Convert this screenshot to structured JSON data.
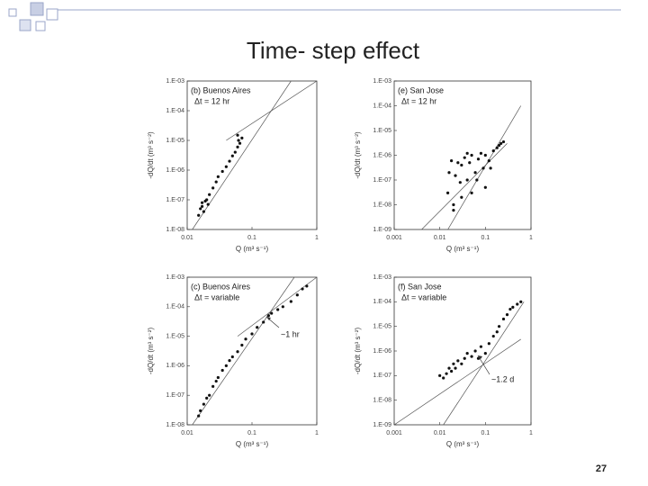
{
  "slide": {
    "title": "Time- step effect",
    "page_number": "27"
  },
  "chart_data": [
    {
      "type": "scatter",
      "panel_label": "(b) Buenos Aires",
      "panel_note": "Δt = 12 hr",
      "xlabel": "Q  (m³ s⁻¹)",
      "ylabel": "-dQ/dt  (m³ s⁻²)",
      "color": "#111",
      "log_x": true,
      "log_y": true,
      "xlim": [
        0.01,
        1
      ],
      "ylim": [
        1e-08,
        0.001
      ],
      "xticks": [
        0.01,
        0.1,
        1
      ],
      "yticks": [
        {
          "value": 1e-08,
          "label": "1.E-08"
        },
        {
          "value": 1e-07,
          "label": "1.E-07"
        },
        {
          "value": 1e-06,
          "label": "1.E-06"
        },
        {
          "value": 1e-05,
          "label": "1.E-05"
        },
        {
          "value": 0.0001,
          "label": "1.E-04"
        },
        {
          "value": 0.001,
          "label": "1.E-03"
        }
      ],
      "x": [
        0.015,
        0.016,
        0.017,
        0.018,
        0.02,
        0.021,
        0.022,
        0.025,
        0.028,
        0.03,
        0.035,
        0.04,
        0.045,
        0.05,
        0.055,
        0.06,
        0.065,
        0.07,
        0.06,
        0.062,
        0.017,
        0.019
      ],
      "values": [
        3e-08,
        5e-08,
        8e-08,
        4e-08,
        1e-07,
        7e-08,
        1.5e-07,
        2.5e-07,
        4e-07,
        6e-07,
        9e-07,
        1.3e-06,
        2e-06,
        3e-06,
        4e-06,
        6e-06,
        8e-06,
        1.2e-05,
        1.5e-05,
        1e-05,
        6e-08,
        9e-08
      ],
      "fit_lines": [
        {
          "x": [
            0.012,
            0.4
          ],
          "y": [
            1e-08,
            0.001
          ]
        },
        {
          "x": [
            0.04,
            1
          ],
          "y": [
            1e-05,
            0.001
          ]
        }
      ]
    },
    {
      "type": "scatter",
      "panel_label": "(e) San Jose",
      "panel_note": "Δt = 12 hr",
      "xlabel": "Q  (m³ s⁻¹)",
      "ylabel": "-dQ/dt  (m³ s⁻²)",
      "color": "#111",
      "log_x": true,
      "log_y": true,
      "xlim": [
        0.001,
        1
      ],
      "ylim": [
        1e-09,
        0.001
      ],
      "xticks": [
        0.001,
        0.01,
        0.1,
        1
      ],
      "yticks": [
        {
          "value": 1e-09,
          "label": "1.E-09"
        },
        {
          "value": 1e-08,
          "label": "1.E-08"
        },
        {
          "value": 1e-07,
          "label": "1.E-07"
        },
        {
          "value": 1e-06,
          "label": "1.E-06"
        },
        {
          "value": 1e-05,
          "label": "1.E-05"
        },
        {
          "value": 0.0001,
          "label": "1.E-04"
        },
        {
          "value": 0.001,
          "label": "1.E-03"
        }
      ],
      "x": [
        0.015,
        0.016,
        0.018,
        0.02,
        0.022,
        0.025,
        0.03,
        0.03,
        0.035,
        0.04,
        0.045,
        0.05,
        0.05,
        0.06,
        0.07,
        0.08,
        0.09,
        0.1,
        0.1,
        0.12,
        0.15,
        0.18,
        0.2,
        0.22,
        0.25,
        0.02,
        0.028,
        0.04,
        0.065,
        0.13
      ],
      "values": [
        3e-08,
        2e-07,
        6e-07,
        1e-08,
        1.5e-07,
        5e-07,
        2e-08,
        4e-07,
        8e-07,
        1e-07,
        5e-07,
        1e-06,
        3e-08,
        2e-07,
        7e-07,
        1.2e-06,
        3e-07,
        1e-06,
        5e-08,
        6e-07,
        1.5e-06,
        2e-06,
        2.5e-06,
        3e-06,
        3.5e-06,
        6e-09,
        8e-08,
        1.2e-06,
        1e-07,
        3e-07
      ],
      "fit_lines": [
        {
          "x": [
            0.004,
            0.3
          ],
          "y": [
            1e-09,
            3e-06
          ]
        },
        {
          "x": [
            0.015,
            0.6
          ],
          "y": [
            1e-09,
            0.0001
          ]
        }
      ]
    },
    {
      "type": "scatter",
      "panel_label": "(c) Buenos Aires",
      "panel_note": "Δt = variable",
      "xlabel": "Q  (m³ s⁻¹)",
      "ylabel": "-dQ/dt  (m³ s⁻²)",
      "color": "#111",
      "log_x": true,
      "log_y": true,
      "xlim": [
        0.01,
        1
      ],
      "ylim": [
        1e-08,
        0.001
      ],
      "xticks": [
        0.01,
        0.1,
        1
      ],
      "yticks": [
        {
          "value": 1e-08,
          "label": "1.E-08"
        },
        {
          "value": 1e-07,
          "label": "1.E-07"
        },
        {
          "value": 1e-06,
          "label": "1.E-06"
        },
        {
          "value": 1e-05,
          "label": "1.E-05"
        },
        {
          "value": 0.0001,
          "label": "1.E-04"
        },
        {
          "value": 0.001,
          "label": "1.E-03"
        }
      ],
      "x": [
        0.015,
        0.016,
        0.018,
        0.02,
        0.022,
        0.025,
        0.028,
        0.03,
        0.035,
        0.04,
        0.045,
        0.05,
        0.06,
        0.07,
        0.08,
        0.1,
        0.12,
        0.15,
        0.18,
        0.2,
        0.25,
        0.3,
        0.4,
        0.5,
        0.6,
        0.7
      ],
      "values": [
        2e-08,
        3e-08,
        5e-08,
        8e-08,
        1e-07,
        2e-07,
        3e-07,
        4e-07,
        7e-07,
        1e-06,
        1.5e-06,
        2e-06,
        3e-06,
        5e-06,
        8e-06,
        1.2e-05,
        2e-05,
        3e-05,
        5e-05,
        6e-05,
        8e-05,
        0.0001,
        0.00015,
        0.00025,
        0.0004,
        0.0005
      ],
      "fit_lines": [
        {
          "x": [
            0.012,
            0.45
          ],
          "y": [
            1e-08,
            0.001
          ]
        },
        {
          "x": [
            0.06,
            1
          ],
          "y": [
            1e-05,
            0.001
          ]
        }
      ],
      "annotation": "~1 hr"
    },
    {
      "type": "scatter",
      "panel_label": "(f) San Jose",
      "panel_note": "Δt = variable",
      "xlabel": "Q  (m³ s⁻¹)",
      "ylabel": "-dQ/dt  (m³ s⁻²)",
      "color": "#111",
      "log_x": true,
      "log_y": true,
      "xlim": [
        0.001,
        1
      ],
      "ylim": [
        1e-09,
        0.001
      ],
      "xticks": [
        0.001,
        0.01,
        0.1,
        1
      ],
      "yticks": [
        {
          "value": 1e-09,
          "label": "1.E-09"
        },
        {
          "value": 1e-08,
          "label": "1.E-08"
        },
        {
          "value": 1e-07,
          "label": "1.E-07"
        },
        {
          "value": 1e-06,
          "label": "1.E-06"
        },
        {
          "value": 1e-05,
          "label": "1.E-05"
        },
        {
          "value": 0.0001,
          "label": "1.E-04"
        },
        {
          "value": 0.001,
          "label": "1.E-03"
        }
      ],
      "x": [
        0.01,
        0.012,
        0.014,
        0.016,
        0.018,
        0.02,
        0.022,
        0.025,
        0.03,
        0.035,
        0.04,
        0.05,
        0.06,
        0.07,
        0.08,
        0.1,
        0.12,
        0.15,
        0.18,
        0.2,
        0.25,
        0.3,
        0.35,
        0.4,
        0.5,
        0.6
      ],
      "values": [
        1e-07,
        8e-08,
        1.2e-07,
        2e-07,
        1.5e-07,
        3e-07,
        2e-07,
        4e-07,
        3e-07,
        5e-07,
        8e-07,
        6e-07,
        1e-06,
        5e-07,
        1.5e-06,
        8e-07,
        2e-06,
        4e-06,
        6e-06,
        1e-05,
        2e-05,
        3e-05,
        5e-05,
        6e-05,
        8e-05,
        0.0001
      ],
      "fit_lines": [
        {
          "x": [
            0.001,
            0.6
          ],
          "y": [
            1e-09,
            3e-06
          ]
        },
        {
          "x": [
            0.012,
            0.7
          ],
          "y": [
            1e-09,
            0.0001
          ]
        }
      ],
      "annotation": "~1.2 d"
    }
  ]
}
